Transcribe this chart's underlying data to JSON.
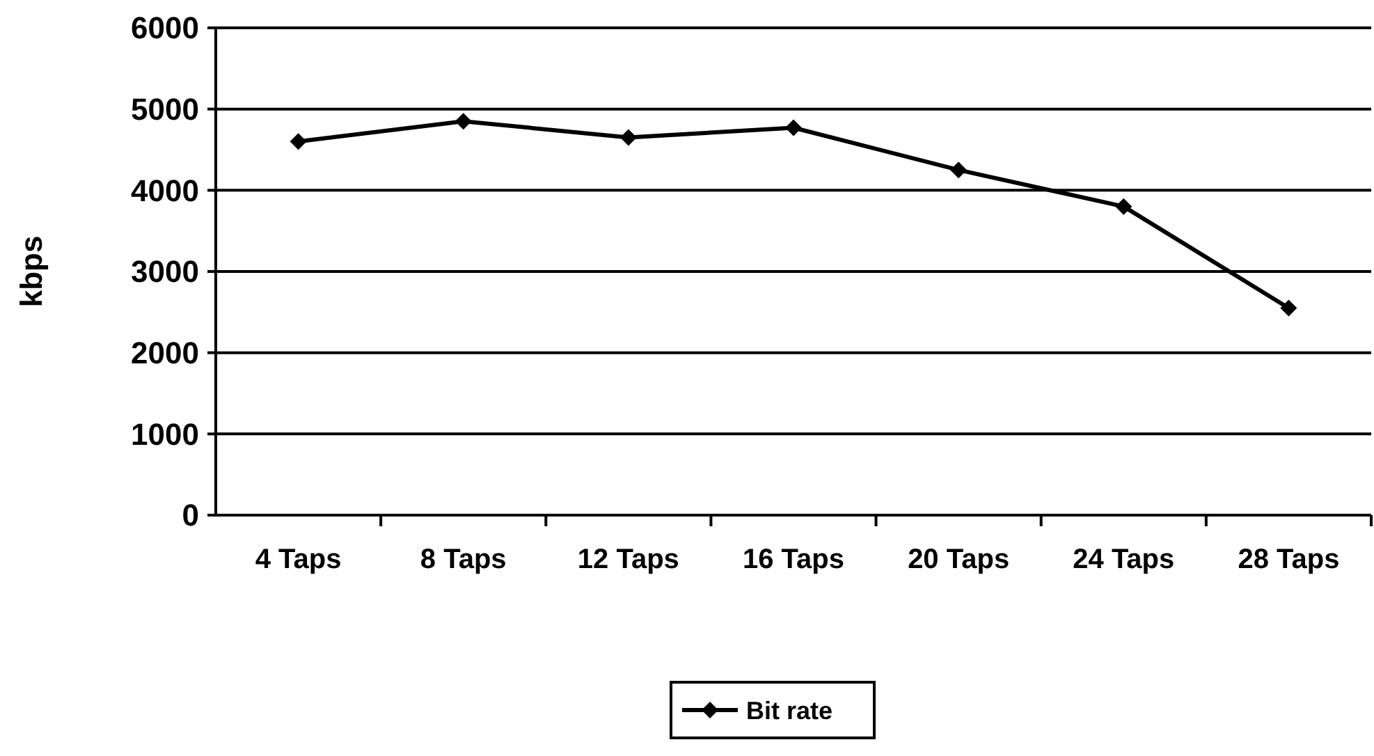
{
  "chart_data": {
    "type": "line",
    "ylabel": "kbps",
    "categories": [
      "4 Taps",
      "8 Taps",
      "12 Taps",
      "16 Taps",
      "20 Taps",
      "24 Taps",
      "28 Taps"
    ],
    "series": [
      {
        "name": "Bit rate",
        "color": "#000000",
        "values": [
          4600,
          4850,
          4650,
          4770,
          4250,
          3800,
          2550
        ]
      }
    ],
    "ylim": [
      0,
      6000
    ],
    "yticks": [
      0,
      1000,
      2000,
      3000,
      4000,
      5000,
      6000
    ],
    "grid": "y",
    "legend": "bottom",
    "marker": "diamond",
    "line_style": "solid"
  }
}
